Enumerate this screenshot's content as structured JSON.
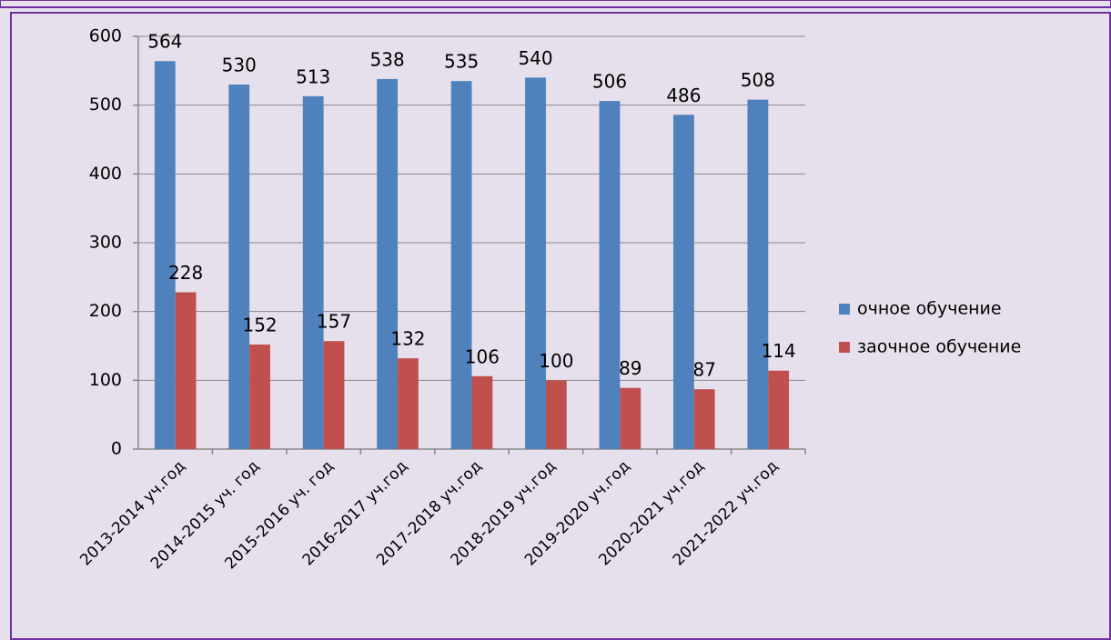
{
  "chart_data": {
    "type": "bar",
    "categories": [
      "2013-2014 уч.год",
      "2014-2015 уч. год",
      "2015-2016 уч. год",
      "2016-2017 уч.год",
      "2017-2018 уч.год",
      "2018-2019 уч.год",
      "2019-2020 уч.год",
      "2020-2021 уч.год",
      "2021-2022 уч.год"
    ],
    "series": [
      {
        "name": "очное обучение",
        "color": "#4f81bd",
        "values": [
          564,
          530,
          513,
          538,
          535,
          540,
          506,
          486,
          508
        ]
      },
      {
        "name": "заочное обучение",
        "color": "#c0504d",
        "values": [
          228,
          152,
          157,
          132,
          106,
          100,
          89,
          87,
          114
        ]
      }
    ],
    "ylim": [
      0,
      600
    ],
    "yticks": [
      0,
      100,
      200,
      300,
      400,
      500,
      600
    ],
    "grid": true,
    "legend": "right"
  }
}
